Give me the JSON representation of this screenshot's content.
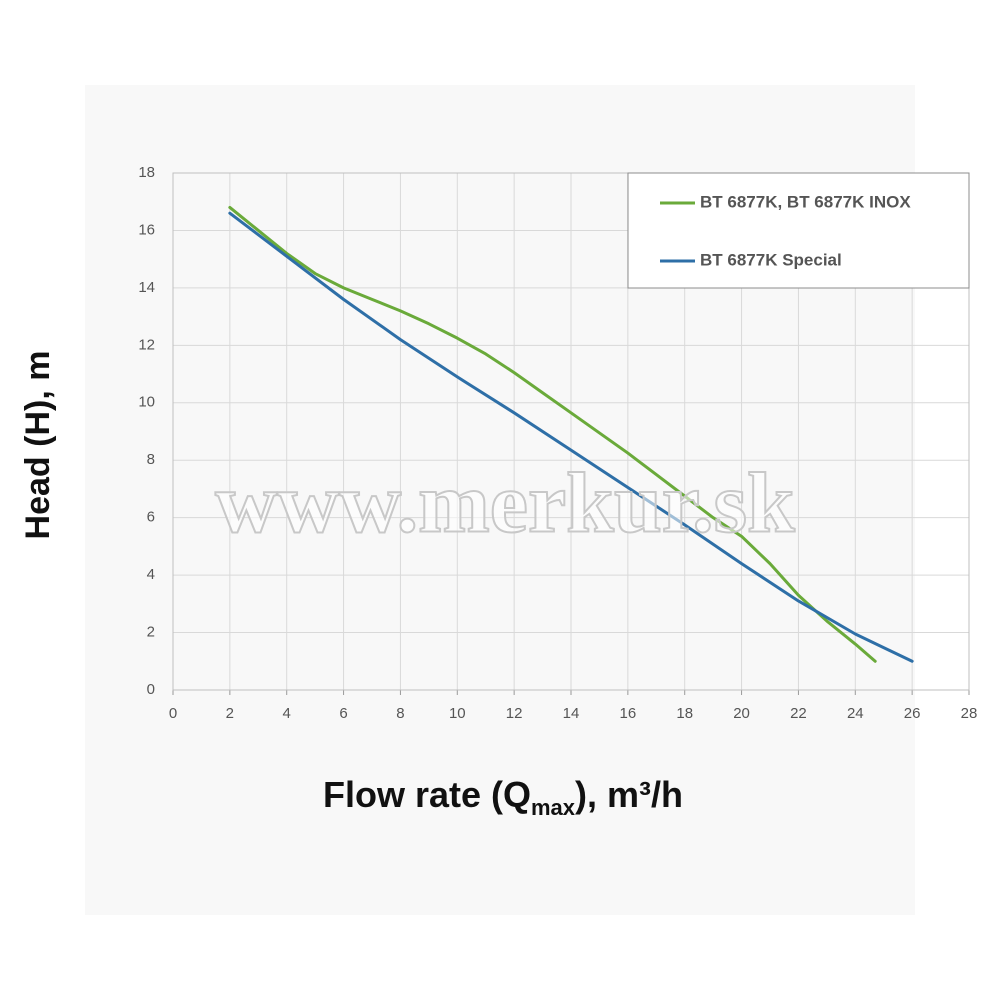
{
  "chart_data": {
    "type": "line",
    "xlabel": [
      "Flow rate (Q",
      "max",
      "), m³/h"
    ],
    "ylabel": "Head (H), m",
    "watermark": "www.merkur.sk",
    "xlim": [
      0,
      28
    ],
    "ylim": [
      0,
      18
    ],
    "xticks": [
      0,
      2,
      4,
      6,
      8,
      10,
      12,
      14,
      16,
      18,
      20,
      22,
      24,
      26,
      28
    ],
    "yticks": [
      0,
      2,
      4,
      6,
      8,
      10,
      12,
      14,
      16,
      18
    ],
    "grid": true,
    "legend": "top-right",
    "series": [
      {
        "name": "BT 6877K, BT 6877K INOX",
        "color": "#6aaa3a",
        "x": [
          2,
          3,
          4,
          5,
          6,
          7,
          8,
          9,
          10,
          11,
          12,
          13,
          14,
          15,
          16,
          17,
          18,
          19,
          20,
          21,
          22,
          23,
          24,
          24.7
        ],
        "values": [
          16.8,
          16.0,
          15.2,
          14.5,
          14.0,
          13.6,
          13.2,
          12.75,
          12.25,
          11.7,
          11.05,
          10.35,
          9.65,
          8.95,
          8.25,
          7.5,
          6.75,
          6.0,
          5.35,
          4.4,
          3.3,
          2.4,
          1.6,
          1.0
        ]
      },
      {
        "name": "BT 6877K Special",
        "color": "#2e6fa7",
        "x": [
          2,
          4,
          6,
          8,
          10,
          12,
          14,
          16,
          18,
          20,
          22,
          24,
          26
        ],
        "values": [
          16.6,
          15.1,
          13.6,
          12.2,
          10.9,
          9.65,
          8.35,
          7.05,
          5.75,
          4.4,
          3.1,
          1.95,
          1.0
        ]
      }
    ]
  }
}
